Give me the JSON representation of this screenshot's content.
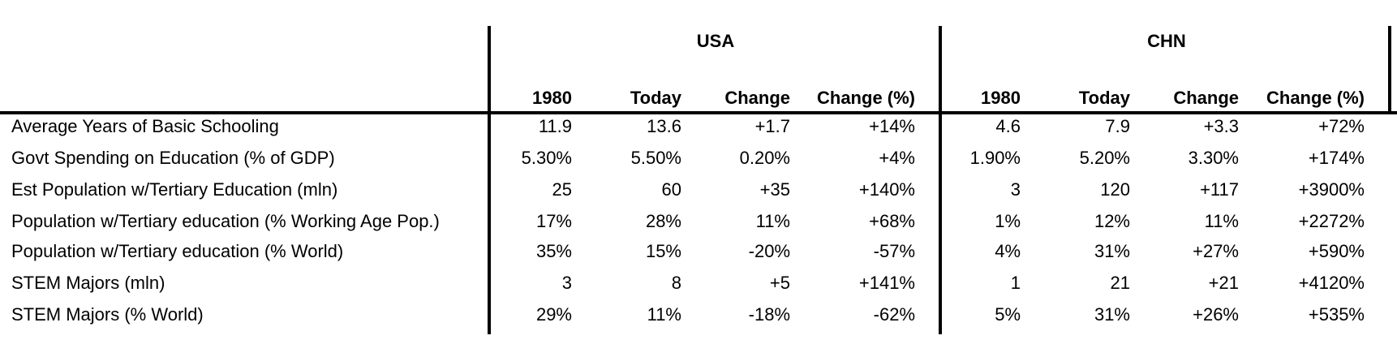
{
  "chart_data": {
    "type": "table",
    "groups": [
      "USA",
      "CHN"
    ],
    "columns": [
      "1980",
      "Today",
      "Change",
      "Change (%)"
    ],
    "rows": [
      {
        "label": "Average Years of Basic Schooling",
        "values": [
          "11.9",
          "13.6",
          "+1.7",
          "+14%",
          "4.6",
          "7.9",
          "+3.3",
          "+72%"
        ]
      },
      {
        "label": "Govt Spending on Education (% of GDP)",
        "values": [
          "5.30%",
          "5.50%",
          "0.20%",
          "+4%",
          "1.90%",
          "5.20%",
          "3.30%",
          "+174%"
        ]
      },
      {
        "label": "Est Population w/Tertiary Education (mln)",
        "values": [
          "25",
          "60",
          "+35",
          "+140%",
          "3",
          "120",
          "+117",
          "+3900%"
        ]
      },
      {
        "label": "Population w/Tertiary education (% Working Age Pop.)",
        "values": [
          "17%",
          "28%",
          "11%",
          "+68%",
          "1%",
          "12%",
          "11%",
          "+2272%"
        ]
      },
      {
        "label": "Population w/Tertiary education (% World)",
        "values": [
          "35%",
          "15%",
          "-20%",
          "-57%",
          "4%",
          "31%",
          "+27%",
          "+590%"
        ]
      },
      {
        "label": "STEM Majors (mln)",
        "values": [
          "3",
          "8",
          "+5",
          "+141%",
          "1",
          "21",
          "+21",
          "+4120%"
        ]
      },
      {
        "label": "STEM Majors  (% World)",
        "values": [
          "29%",
          "11%",
          "-18%",
          "-62%",
          "5%",
          "31%",
          "+26%",
          "+535%"
        ]
      }
    ]
  }
}
